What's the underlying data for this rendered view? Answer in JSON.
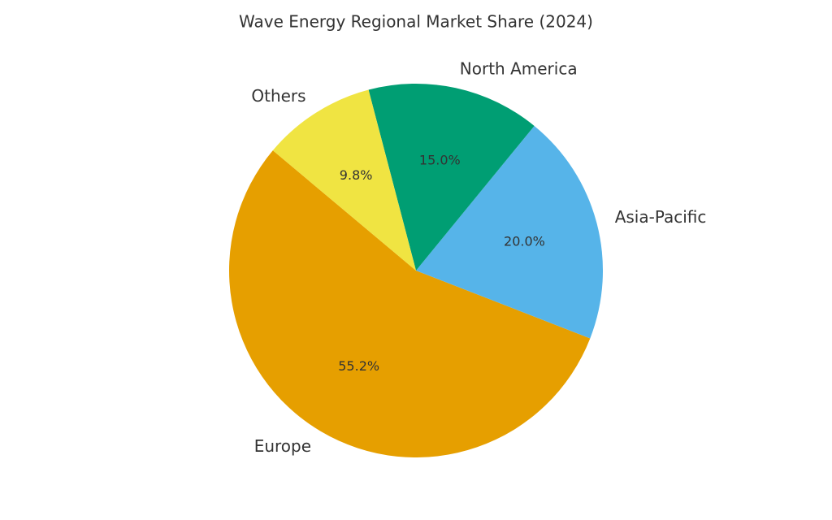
{
  "chart_data": {
    "type": "pie",
    "title": "Wave Energy Regional Market Share (2024)",
    "categories": [
      "Europe",
      "Asia-Pacific",
      "North America",
      "Others"
    ],
    "values": [
      55.2,
      20.0,
      15.0,
      9.8
    ],
    "value_labels": [
      "55.2%",
      "20.0%",
      "15.0%",
      "9.8%"
    ],
    "colors": [
      "#E69F00",
      "#56B4E9",
      "#009E73",
      "#F0E442"
    ]
  }
}
